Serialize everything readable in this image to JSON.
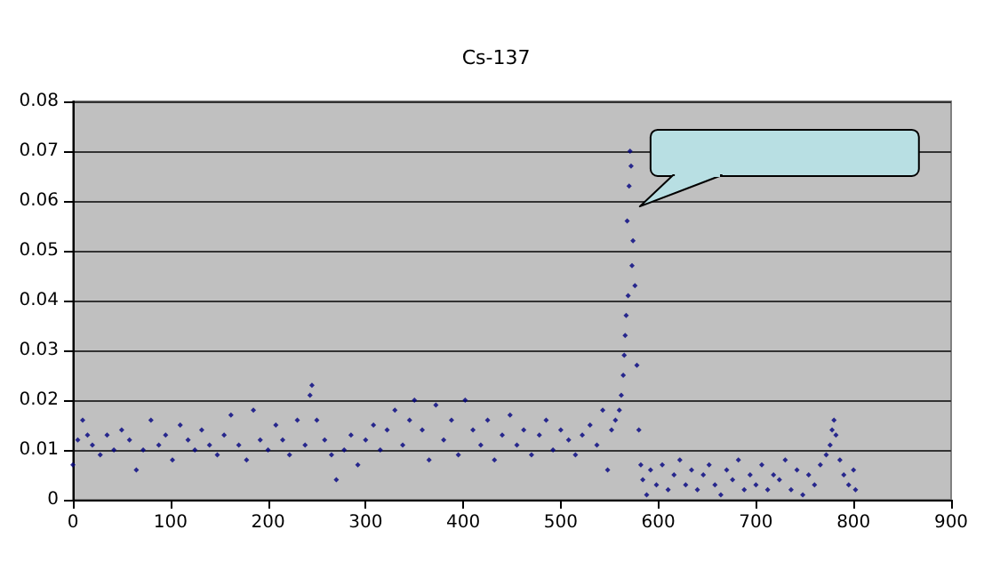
{
  "chart_data": {
    "type": "scatter",
    "title": "Cs-137",
    "x": [
      0,
      5,
      10,
      15,
      20,
      28,
      35,
      42,
      50,
      58,
      65,
      72,
      80,
      88,
      95,
      102,
      110,
      118,
      125,
      132,
      140,
      148,
      155,
      162,
      170,
      178,
      185,
      192,
      200,
      208,
      215,
      222,
      230,
      238,
      243,
      245,
      250,
      258,
      265,
      270,
      278,
      285,
      292,
      300,
      308,
      315,
      322,
      330,
      338,
      345,
      350,
      358,
      365,
      372,
      380,
      388,
      395,
      402,
      410,
      418,
      425,
      432,
      440,
      448,
      455,
      462,
      470,
      478,
      485,
      492,
      500,
      508,
      515,
      522,
      530,
      537,
      543,
      548,
      552,
      556,
      560,
      562,
      564,
      565,
      566,
      567,
      568,
      569,
      570,
      571,
      572,
      573,
      574,
      576,
      578,
      580,
      582,
      584,
      588,
      592,
      598,
      604,
      610,
      616,
      622,
      628,
      634,
      640,
      646,
      652,
      658,
      664,
      670,
      676,
      682,
      688,
      694,
      700,
      706,
      712,
      718,
      724,
      730,
      736,
      742,
      748,
      754,
      760,
      766,
      772,
      776,
      778,
      780,
      782,
      786,
      790,
      795,
      800,
      802
    ],
    "series": [
      {
        "color": "#000080",
        "values": [
          0.007,
          0.012,
          0.016,
          0.013,
          0.011,
          0.009,
          0.013,
          0.01,
          0.014,
          0.012,
          0.006,
          0.01,
          0.016,
          0.011,
          0.013,
          0.008,
          0.015,
          0.012,
          0.01,
          0.014,
          0.011,
          0.009,
          0.013,
          0.017,
          0.011,
          0.008,
          0.018,
          0.012,
          0.01,
          0.015,
          0.012,
          0.009,
          0.016,
          0.011,
          0.021,
          0.023,
          0.016,
          0.012,
          0.009,
          0.004,
          0.01,
          0.013,
          0.007,
          0.012,
          0.015,
          0.01,
          0.014,
          0.018,
          0.011,
          0.016,
          0.02,
          0.014,
          0.008,
          0.019,
          0.012,
          0.016,
          0.009,
          0.02,
          0.014,
          0.011,
          0.016,
          0.008,
          0.013,
          0.017,
          0.011,
          0.014,
          0.009,
          0.013,
          0.016,
          0.01,
          0.014,
          0.012,
          0.009,
          0.013,
          0.015,
          0.011,
          0.018,
          0.006,
          0.014,
          0.016,
          0.018,
          0.021,
          0.025,
          0.029,
          0.033,
          0.037,
          0.056,
          0.041,
          0.063,
          0.07,
          0.067,
          0.047,
          0.052,
          0.043,
          0.027,
          0.014,
          0.007,
          0.004,
          0.001,
          0.006,
          0.003,
          0.007,
          0.002,
          0.005,
          0.008,
          0.003,
          0.006,
          0.002,
          0.005,
          0.007,
          0.003,
          0.001,
          0.006,
          0.004,
          0.008,
          0.002,
          0.005,
          0.003,
          0.007,
          0.002,
          0.005,
          0.004,
          0.008,
          0.002,
          0.006,
          0.001,
          0.005,
          0.003,
          0.007,
          0.009,
          0.011,
          0.014,
          0.016,
          0.013,
          0.008,
          0.005,
          0.003,
          0.006,
          0.002
        ]
      }
    ],
    "xlim": [
      0,
      900
    ],
    "xticks": [
      0,
      100,
      200,
      300,
      400,
      500,
      600,
      700,
      800,
      900
    ],
    "ylim": [
      0,
      0.08
    ],
    "yticks": [
      0,
      0.01,
      0.02,
      0.03,
      0.04,
      0.05,
      0.06,
      0.07,
      0.08
    ],
    "grid": "y",
    "marker": "diamond"
  }
}
